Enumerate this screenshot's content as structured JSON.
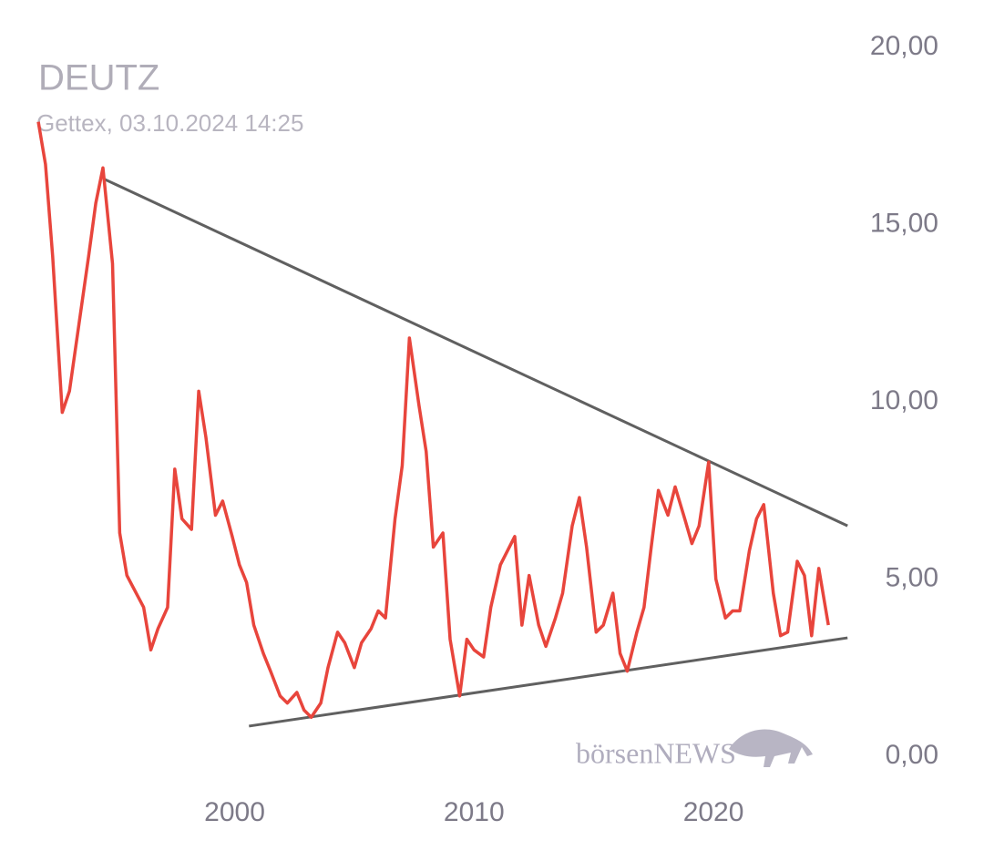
{
  "chart_data": {
    "type": "line",
    "title": "DEUTZ",
    "subtitle": "Gettex, 03.10.2024 14:25",
    "watermark": "börsenNEWS",
    "x": [
      1991.8,
      1992.1,
      1992.4,
      1992.8,
      1993.1,
      1993.5,
      1993.9,
      1994.2,
      1994.5,
      1994.9,
      1995.2,
      1995.5,
      1996.2,
      1996.5,
      1996.8,
      1997.2,
      1997.5,
      1997.8,
      1998.2,
      1998.5,
      1998.8,
      1999.2,
      1999.5,
      1999.9,
      2000.2,
      2000.5,
      2000.8,
      2001.2,
      2001.5,
      2001.9,
      2002.2,
      2002.6,
      2002.9,
      2003.2,
      2003.6,
      2003.9,
      2004.3,
      2004.6,
      2005.0,
      2005.3,
      2005.7,
      2006.0,
      2006.3,
      2006.7,
      2007.0,
      2007.3,
      2007.7,
      2008.0,
      2008.3,
      2008.7,
      2009.0,
      2009.4,
      2009.7,
      2010.0,
      2010.4,
      2010.7,
      2011.1,
      2011.7,
      2012.0,
      2012.3,
      2012.7,
      2013.0,
      2013.4,
      2013.7,
      2014.1,
      2014.4,
      2014.7,
      2015.1,
      2015.4,
      2015.8,
      2016.1,
      2016.4,
      2016.8,
      2017.1,
      2017.4,
      2017.7,
      2018.1,
      2018.4,
      2018.8,
      2019.1,
      2019.4,
      2019.8,
      2020.1,
      2020.5,
      2020.8,
      2021.1,
      2021.5,
      2021.8,
      2022.1,
      2022.5,
      2022.8,
      2023.1,
      2023.5,
      2023.8,
      2024.1,
      2024.4,
      2024.8
    ],
    "series": [
      {
        "name": "DEUTZ",
        "color": "#e8453c",
        "values": [
          17.9,
          16.7,
          14.1,
          9.7,
          10.3,
          12.2,
          14.1,
          15.6,
          16.6,
          13.9,
          6.3,
          5.1,
          4.2,
          3.0,
          3.6,
          4.2,
          8.1,
          6.7,
          6.4,
          10.3,
          9.0,
          6.8,
          7.2,
          6.2,
          5.4,
          4.9,
          3.7,
          2.9,
          2.4,
          1.7,
          1.5,
          1.8,
          1.3,
          1.1,
          1.5,
          2.5,
          3.5,
          3.2,
          2.5,
          3.2,
          3.6,
          4.1,
          3.9,
          6.7,
          8.2,
          11.8,
          9.9,
          8.6,
          5.9,
          6.3,
          3.3,
          1.7,
          3.3,
          3.0,
          2.8,
          4.2,
          5.4,
          6.2,
          3.7,
          5.1,
          3.7,
          3.1,
          3.9,
          4.6,
          6.5,
          7.3,
          5.9,
          3.5,
          3.7,
          4.6,
          2.9,
          2.4,
          3.5,
          4.2,
          5.9,
          7.5,
          6.8,
          7.6,
          6.7,
          6.0,
          6.5,
          8.3,
          5.0,
          3.9,
          4.1,
          4.1,
          5.8,
          6.7,
          7.1,
          4.6,
          3.4,
          3.5,
          5.5,
          5.1,
          3.4,
          5.3,
          3.7
        ]
      }
    ],
    "trend_lines": [
      {
        "color": "#606060",
        "x": [
          1994.5,
          2025.6
        ],
        "values": [
          16.3,
          6.5
        ]
      },
      {
        "color": "#606060",
        "x": [
          2000.6,
          2025.6
        ],
        "values": [
          0.85,
          3.34
        ]
      }
    ],
    "xlim": [
      1990.2,
      2031.3
    ],
    "xticks": [
      2000,
      2010,
      2020
    ],
    "ylim": [
      0,
      20
    ],
    "yticks": [
      {
        "value": 0,
        "label": "0,00"
      },
      {
        "value": 5,
        "label": "5,00"
      },
      {
        "value": 10,
        "label": "10,00"
      },
      {
        "value": 15,
        "label": "15,00"
      },
      {
        "value": 20,
        "label": "20,00"
      }
    ],
    "grid": false
  }
}
